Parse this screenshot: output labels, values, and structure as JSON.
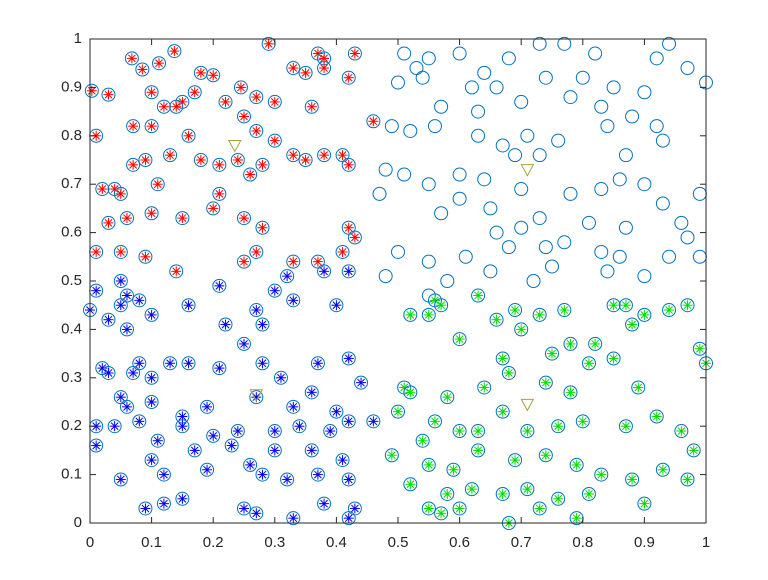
{
  "chart_data": {
    "type": "scatter",
    "xlim": [
      0,
      1
    ],
    "ylim": [
      0,
      1
    ],
    "xticks": [
      0,
      0.1,
      0.2,
      0.3,
      0.4,
      0.5,
      0.6,
      0.7,
      0.8,
      0.9,
      1
    ],
    "yticks": [
      0,
      0.1,
      0.2,
      0.3,
      0.4,
      0.5,
      0.6,
      0.7,
      0.8,
      0.9,
      1
    ],
    "series": [
      {
        "marker": "circle-asterisk",
        "color": "#ff0000",
        "edge_color": "#0072bd",
        "x": [
          0.003,
          0.03,
          0.01,
          0.068,
          0.085,
          0.137,
          0.112,
          0.18,
          0.2,
          0.245,
          0.29,
          0.37,
          0.38,
          0.43,
          0.33,
          0.35,
          0.38,
          0.42,
          0.1,
          0.15,
          0.17,
          0.22,
          0.27,
          0.3,
          0.36,
          0.46,
          0.07,
          0.1,
          0.12,
          0.14,
          0.16,
          0.25,
          0.27,
          0.3,
          0.33,
          0.38,
          0.41,
          0.02,
          0.04,
          0.07,
          0.09,
          0.13,
          0.18,
          0.21,
          0.24,
          0.28,
          0.35,
          0.42,
          0.05,
          0.11,
          0.21,
          0.26,
          0.2,
          0.1,
          0.03,
          0.06,
          0.15,
          0.25,
          0.28,
          0.42,
          0.43,
          0.41,
          0.01,
          0.05,
          0.25,
          0.27,
          0.33,
          0.37,
          0.09,
          0.14
        ],
        "values": [
          0.893,
          0.885,
          0.8,
          0.96,
          0.937,
          0.975,
          0.95,
          0.93,
          0.925,
          0.9,
          0.99,
          0.97,
          0.96,
          0.97,
          0.94,
          0.93,
          0.94,
          0.92,
          0.89,
          0.87,
          0.89,
          0.87,
          0.88,
          0.87,
          0.86,
          0.83,
          0.82,
          0.82,
          0.86,
          0.86,
          0.8,
          0.84,
          0.81,
          0.79,
          0.76,
          0.76,
          0.76,
          0.69,
          0.69,
          0.74,
          0.75,
          0.76,
          0.75,
          0.74,
          0.75,
          0.74,
          0.75,
          0.74,
          0.68,
          0.7,
          0.68,
          0.72,
          0.65,
          0.64,
          0.62,
          0.63,
          0.63,
          0.63,
          0.61,
          0.61,
          0.59,
          0.56,
          0.56,
          0.56,
          0.54,
          0.56,
          0.54,
          0.54,
          0.55,
          0.52
        ]
      },
      {
        "marker": "circle",
        "edge_color": "#0072bd",
        "x": [
          0.51,
          0.53,
          0.55,
          0.6,
          0.64,
          0.68,
          0.73,
          0.77,
          0.82,
          0.92,
          0.94,
          0.97,
          1,
          0.5,
          0.54,
          0.62,
          0.66,
          0.74,
          0.8,
          0.85,
          0.9,
          0.57,
          0.63,
          0.7,
          0.78,
          0.83,
          0.88,
          0.92,
          0.49,
          0.52,
          0.56,
          0.63,
          0.67,
          0.71,
          0.76,
          0.84,
          0.87,
          0.93,
          0.48,
          0.51,
          0.55,
          0.6,
          0.64,
          0.69,
          0.73,
          0.78,
          0.83,
          0.86,
          0.9,
          0.93,
          0.96,
          0.99,
          0.47,
          0.57,
          0.6,
          0.65,
          0.7,
          0.73,
          0.81,
          0.87,
          0.5,
          0.55,
          0.61,
          0.66,
          0.68,
          0.7,
          0.74,
          0.77,
          0.83,
          0.86,
          0.9,
          0.94,
          0.97,
          0.48,
          0.55,
          0.58,
          0.65,
          0.72,
          0.75,
          0.84,
          0.99
        ],
        "values": [
          0.97,
          0.94,
          0.96,
          0.97,
          0.93,
          0.96,
          0.99,
          0.99,
          0.97,
          0.96,
          0.99,
          0.94,
          0.91,
          0.91,
          0.92,
          0.9,
          0.9,
          0.92,
          0.92,
          0.9,
          0.89,
          0.86,
          0.85,
          0.87,
          0.88,
          0.86,
          0.84,
          0.82,
          0.82,
          0.81,
          0.82,
          0.8,
          0.78,
          0.8,
          0.79,
          0.82,
          0.76,
          0.79,
          0.73,
          0.72,
          0.7,
          0.72,
          0.71,
          0.76,
          0.76,
          0.68,
          0.69,
          0.71,
          0.7,
          0.66,
          0.62,
          0.68,
          0.68,
          0.64,
          0.67,
          0.65,
          0.69,
          0.63,
          0.62,
          0.61,
          0.56,
          0.54,
          0.55,
          0.6,
          0.57,
          0.61,
          0.57,
          0.58,
          0.56,
          0.55,
          0.51,
          0.55,
          0.59,
          0.51,
          0.47,
          0.5,
          0.52,
          0.5,
          0.53,
          0.52,
          0.55
        ]
      },
      {
        "marker": "circle-asterisk",
        "color": "#0000ff",
        "edge_color": "#0072bd",
        "x": [
          0,
          0.01,
          0.05,
          0.06,
          0.08,
          0.03,
          0.05,
          0.06,
          0.1,
          0.16,
          0.21,
          0.3,
          0.32,
          0.33,
          0.38,
          0.42,
          0.4,
          0.27,
          0.28,
          0.22,
          0.25,
          0.02,
          0.03,
          0.07,
          0.08,
          0.1,
          0.13,
          0.16,
          0.21,
          0.28,
          0.31,
          0.37,
          0.42,
          0.44,
          0.05,
          0.06,
          0.1,
          0.15,
          0.19,
          0.27,
          0.33,
          0.36,
          0.4,
          0.01,
          0.04,
          0.08,
          0.11,
          0.15,
          0.2,
          0.24,
          0.3,
          0.34,
          0.39,
          0.42,
          0.46,
          0.01,
          0.1,
          0.17,
          0.23,
          0.26,
          0.3,
          0.36,
          0.41,
          0.05,
          0.12,
          0.19,
          0.28,
          0.32,
          0.37,
          0.42,
          0.09,
          0.12,
          0.15,
          0.25,
          0.27,
          0.33,
          0.38,
          0.42,
          0.43
        ],
        "values": [
          0.44,
          0.48,
          0.5,
          0.47,
          0.46,
          0.42,
          0.45,
          0.4,
          0.43,
          0.45,
          0.49,
          0.48,
          0.51,
          0.46,
          0.52,
          0.52,
          0.45,
          0.44,
          0.41,
          0.41,
          0.37,
          0.32,
          0.31,
          0.31,
          0.33,
          0.3,
          0.33,
          0.33,
          0.32,
          0.33,
          0.3,
          0.33,
          0.34,
          0.29,
          0.26,
          0.24,
          0.25,
          0.22,
          0.24,
          0.26,
          0.24,
          0.27,
          0.23,
          0.2,
          0.2,
          0.21,
          0.17,
          0.2,
          0.18,
          0.19,
          0.19,
          0.2,
          0.19,
          0.21,
          0.21,
          0.16,
          0.13,
          0.15,
          0.16,
          0.12,
          0.15,
          0.15,
          0.13,
          0.09,
          0.1,
          0.11,
          0.1,
          0.09,
          0.1,
          0.09,
          0.03,
          0.04,
          0.05,
          0.03,
          0.02,
          0.01,
          0.04,
          0.01,
          0.03
        ]
      },
      {
        "marker": "circle-asterisk",
        "color": "#00dd00",
        "edge_color": "#0072bd",
        "x": [
          0.52,
          0.55,
          0.56,
          0.57,
          0.63,
          0.66,
          0.69,
          0.73,
          0.77,
          0.85,
          0.87,
          0.9,
          0.94,
          0.97,
          0.6,
          0.67,
          0.7,
          0.75,
          0.78,
          0.82,
          0.88,
          0.99,
          0.51,
          0.52,
          0.58,
          0.64,
          0.68,
          0.74,
          0.78,
          0.81,
          0.85,
          0.89,
          1,
          0.5,
          0.54,
          0.56,
          0.6,
          0.63,
          0.67,
          0.71,
          0.76,
          0.8,
          0.87,
          0.92,
          0.96,
          0.98,
          0.49,
          0.55,
          0.59,
          0.63,
          0.69,
          0.74,
          0.79,
          0.83,
          0.88,
          0.93,
          0.97,
          0.52,
          0.58,
          0.62,
          0.67,
          0.71,
          0.76,
          0.81,
          0.9,
          0.55,
          0.57,
          0.6,
          0.68,
          0.73,
          0.79
        ],
        "values": [
          0.43,
          0.43,
          0.46,
          0.45,
          0.47,
          0.42,
          0.44,
          0.43,
          0.44,
          0.45,
          0.45,
          0.43,
          0.44,
          0.45,
          0.38,
          0.34,
          0.4,
          0.35,
          0.37,
          0.37,
          0.41,
          0.36,
          0.28,
          0.27,
          0.26,
          0.28,
          0.31,
          0.29,
          0.27,
          0.33,
          0.34,
          0.28,
          0.33,
          0.23,
          0.17,
          0.21,
          0.19,
          0.19,
          0.23,
          0.19,
          0.2,
          0.21,
          0.2,
          0.22,
          0.19,
          0.15,
          0.14,
          0.12,
          0.11,
          0.15,
          0.13,
          0.14,
          0.12,
          0.1,
          0.09,
          0.11,
          0.09,
          0.08,
          0.06,
          0.07,
          0.06,
          0.07,
          0.05,
          0.06,
          0.04,
          0.03,
          0.02,
          0.03,
          0,
          0.03,
          0.01
        ]
      },
      {
        "marker": "triangle",
        "edge_color": "#a3a33a",
        "x": [
          0.235,
          0.71,
          0.27,
          0.71
        ],
        "values": [
          0.78,
          0.73,
          0.265,
          0.245
        ]
      }
    ]
  }
}
